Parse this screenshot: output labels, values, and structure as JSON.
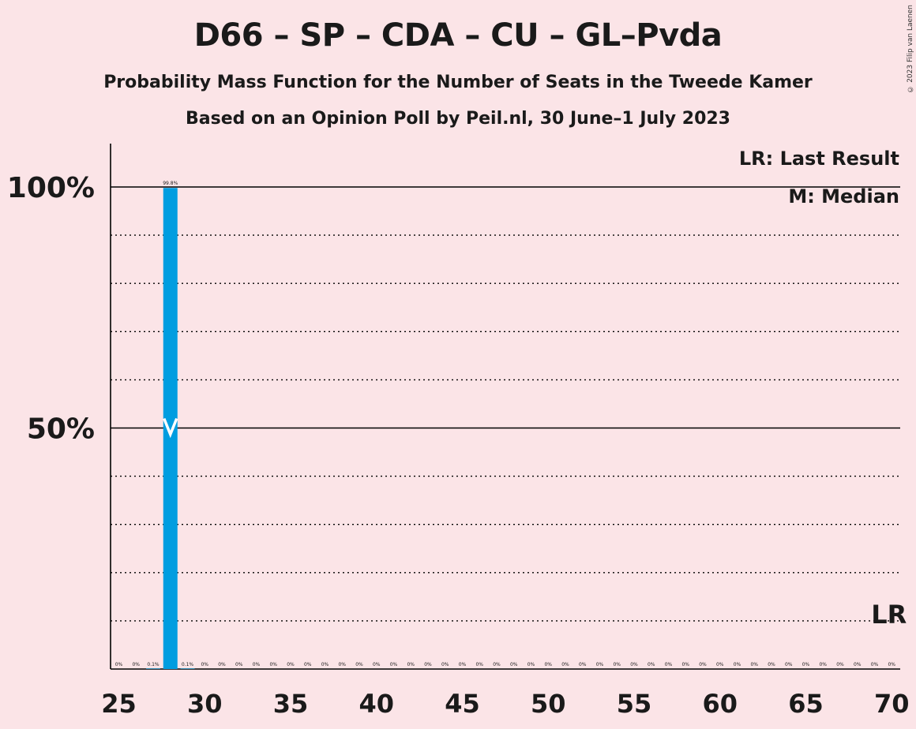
{
  "title": "D66 – SP – CDA – CU – GL–Pvda",
  "subtitle": "Probability Mass Function for the Number of Seats in the Tweede Kamer",
  "subtitle2": "Based on an Opinion Poll by Peil.nl, 30 June–1 July 2023",
  "copyright": "© 2023 Filip van Laenen",
  "colors": {
    "bar": "#009de0",
    "background": "#fbe4e7",
    "text": "#1a1a1a"
  },
  "chart_data": {
    "type": "bar",
    "title": "D66 – SP – CDA – CU – GL–Pvda",
    "xlim": [
      25,
      70
    ],
    "ylim": [
      0,
      109
    ],
    "x_ticks": [
      "25",
      "30",
      "35",
      "40",
      "45",
      "50",
      "55",
      "60",
      "65",
      "70"
    ],
    "y_ticks": [
      "50%",
      "100%"
    ],
    "grid": "dotted every 10%, solid at 50% and 100%",
    "legend": [
      "LR: Last Result",
      "M: Median"
    ],
    "legend_position": "top-right",
    "median": 28,
    "last_result": 70,
    "last_result_label": "LR",
    "seats": [
      25,
      26,
      27,
      28,
      29,
      30,
      31,
      32,
      33,
      34,
      35,
      36,
      37,
      38,
      39,
      40,
      41,
      42,
      43,
      44,
      45,
      46,
      47,
      48,
      49,
      50,
      51,
      52,
      53,
      54,
      55,
      56,
      57,
      58,
      59,
      60,
      61,
      62,
      63,
      64,
      65,
      66,
      67,
      68,
      69,
      70
    ],
    "values": [
      0,
      0,
      0.1,
      99.8,
      0.1,
      0,
      0,
      0,
      0,
      0,
      0,
      0,
      0,
      0,
      0,
      0,
      0,
      0,
      0,
      0,
      0,
      0,
      0,
      0,
      0,
      0,
      0,
      0,
      0,
      0,
      0,
      0,
      0,
      0,
      0,
      0,
      0,
      0,
      0,
      0,
      0,
      0,
      0,
      0,
      0,
      0
    ],
    "labels": [
      "0%",
      "0%",
      "0.1%",
      "99.8%",
      "0.1%",
      "0%",
      "0%",
      "0%",
      "0%",
      "0%",
      "0%",
      "0%",
      "0%",
      "0%",
      "0%",
      "0%",
      "0%",
      "0%",
      "0%",
      "0%",
      "0%",
      "0%",
      "0%",
      "0%",
      "0%",
      "0%",
      "0%",
      "0%",
      "0%",
      "0%",
      "0%",
      "0%",
      "0%",
      "0%",
      "0%",
      "0%",
      "0%",
      "0%",
      "0%",
      "0%",
      "0%",
      "0%",
      "0%",
      "0%",
      "0%",
      "0%"
    ]
  }
}
